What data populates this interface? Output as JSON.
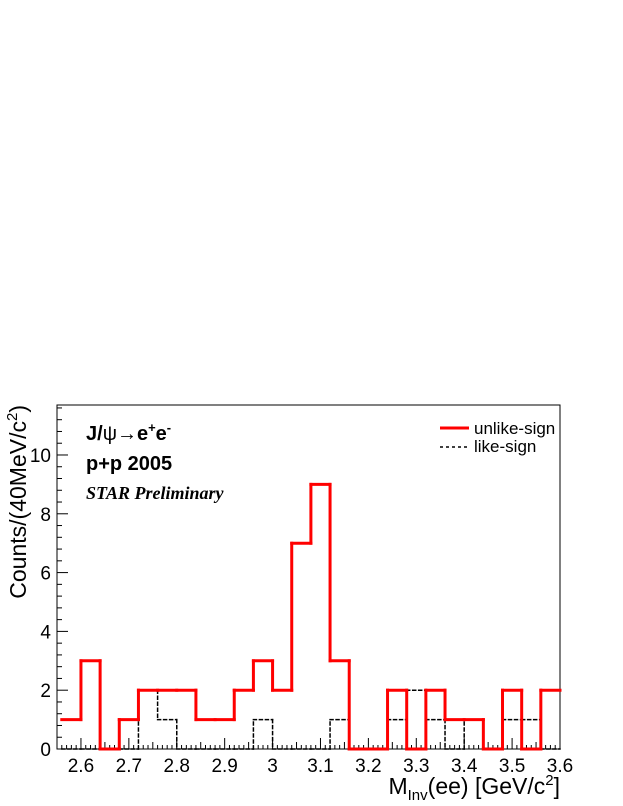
{
  "chart_data": {
    "type": "histogram",
    "xlabel_main": "M",
    "xlabel_sub": "Inv",
    "xlabel_rest": "(ee) [GeV/c",
    "xlabel_sup": "2",
    "xlabel_end": "]",
    "ylabel_main": "Counts/(40MeV/c",
    "ylabel_sup": "2",
    "ylabel_end": ")",
    "xlim": [
      2.55,
      3.6
    ],
    "ylim": [
      0,
      11.7
    ],
    "bin_width": 0.04,
    "x_ticks": [
      2.6,
      2.7,
      2.8,
      2.9,
      3.0,
      3.1,
      3.2,
      3.3,
      3.4,
      3.5,
      3.6
    ],
    "x_tick_labels": [
      "2.6",
      "2.7",
      "2.8",
      "2.9",
      "3",
      "3.1",
      "3.2",
      "3.3",
      "3.4",
      "3.5",
      "3.6"
    ],
    "y_ticks": [
      0,
      2,
      4,
      6,
      8,
      10
    ],
    "y_tick_labels": [
      "0",
      "2",
      "4",
      "6",
      "8",
      "10"
    ],
    "bin_edges": [
      2.56,
      2.6,
      2.64,
      2.68,
      2.72,
      2.76,
      2.8,
      2.84,
      2.88,
      2.92,
      2.96,
      3.0,
      3.04,
      3.08,
      3.12,
      3.16,
      3.2,
      3.24,
      3.28,
      3.32,
      3.36,
      3.4,
      3.44,
      3.48,
      3.52,
      3.56,
      3.6
    ],
    "series": [
      {
        "name": "unlike-sign",
        "color": "#ff0000",
        "style": "solid",
        "values": [
          1,
          3,
          0,
          1,
          2,
          2,
          2,
          1,
          1,
          2,
          3,
          2,
          7,
          9,
          3,
          0,
          0,
          2,
          0,
          2,
          1,
          1,
          0,
          2,
          0,
          2
        ]
      },
      {
        "name": "like-sign",
        "color": "#000000",
        "style": "dashed",
        "values": [
          0,
          0,
          0,
          0,
          2,
          1,
          0,
          0,
          0,
          0,
          1,
          0,
          0,
          0,
          1,
          0,
          0,
          1,
          2,
          1,
          0,
          1,
          0,
          1,
          1,
          0
        ]
      }
    ],
    "legend_placement": "top-right",
    "annotations": {
      "line1_a": "J/",
      "line1_psi": "ψ",
      "line1_arrow": "→",
      "line1_e": "e",
      "line1_plus": "+",
      "line1_e2": "e",
      "line1_minus": "-",
      "line2": "p+p 2005",
      "line3": "STAR Preliminary"
    }
  }
}
